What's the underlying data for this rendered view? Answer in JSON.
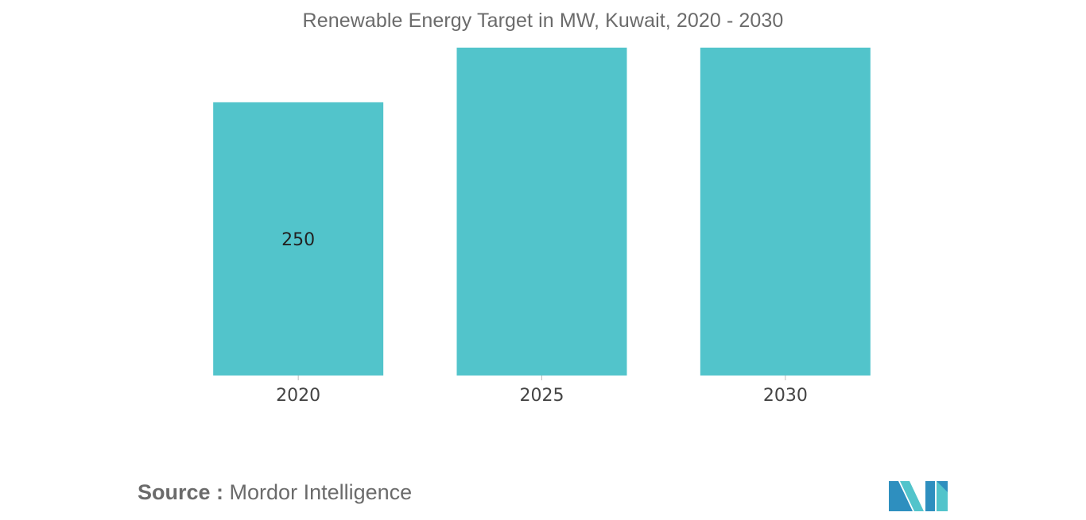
{
  "chart_data": {
    "type": "bar",
    "title": "Renewable Energy Target in MW, Kuwait, 2020 - 2030",
    "categories": [
      "2020",
      "2025",
      "2030"
    ],
    "values": [
      250,
      300,
      300
    ],
    "data_labels": [
      "250",
      "",
      ""
    ],
    "xlabel": "",
    "ylabel": "",
    "ylim": [
      0,
      300
    ],
    "grid": false,
    "bar_color": "#52c4cb"
  },
  "source": {
    "label": "Source :",
    "text": "Mordor Intelligence"
  },
  "logo": {
    "icon": "mordor-intelligence-logo-icon",
    "colors": [
      "#2e8fbf",
      "#52c4cb"
    ]
  }
}
